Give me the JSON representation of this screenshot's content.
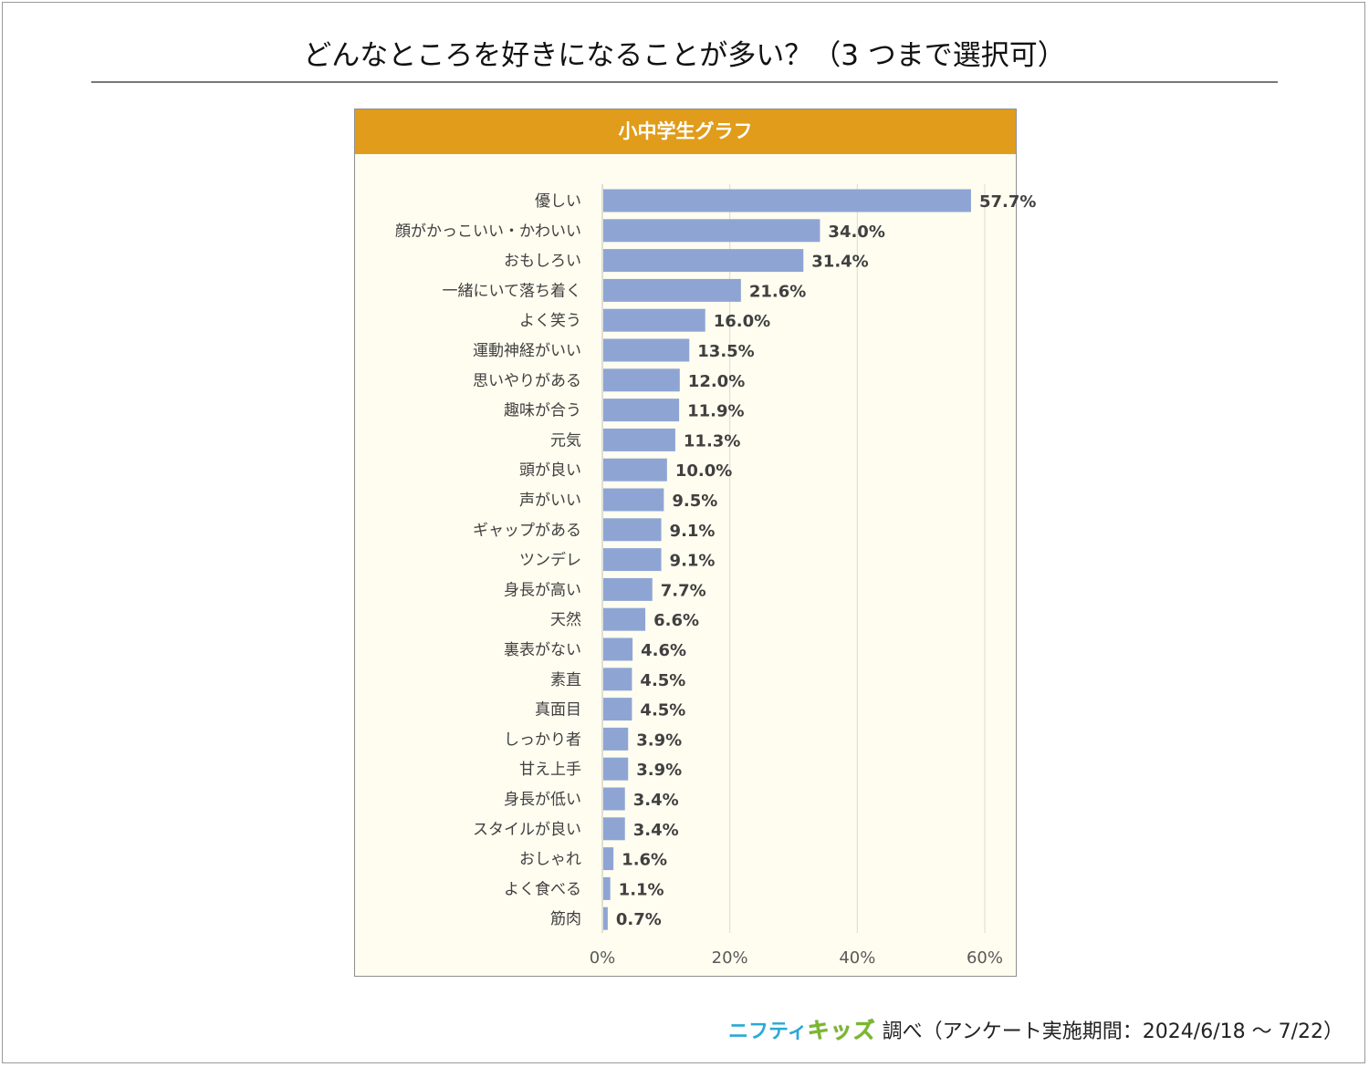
{
  "page": {
    "title": "どんなところを好きになることが多い？（3 つまで選択可）",
    "footer": {
      "brand_part1": "ニフティ",
      "brand_part2": "キッズ",
      "text": "調べ（アンケート実施期間：2024/6/18 ～ 7/22）"
    }
  },
  "colors": {
    "header": "#e09c1a",
    "panel_bg": "#fffdf0",
    "bar": "#8ea5d4"
  },
  "chart_data": {
    "type": "bar",
    "orientation": "horizontal",
    "title": "小中学生グラフ",
    "unit": "%",
    "categories": [
      "優しい",
      "顔がかっこいい・かわいい",
      "おもしろい",
      "一緒にいて落ち着く",
      "よく笑う",
      "運動神経がいい",
      "思いやりがある",
      "趣味が合う",
      "元気",
      "頭が良い",
      "声がいい",
      "ギャップがある",
      "ツンデレ",
      "身長が高い",
      "天然",
      "裏表がない",
      "素直",
      "真面目",
      "しっかり者",
      "甘え上手",
      "身長が低い",
      "スタイルが良い",
      "おしゃれ",
      "よく食べる",
      "筋肉"
    ],
    "values": [
      57.7,
      34.0,
      31.4,
      21.6,
      16.0,
      13.5,
      12.0,
      11.9,
      11.3,
      10.0,
      9.5,
      9.1,
      9.1,
      7.7,
      6.6,
      4.6,
      4.5,
      4.5,
      3.9,
      3.9,
      3.4,
      3.4,
      1.6,
      1.1,
      0.7
    ],
    "data_labels": [
      "57.7%",
      "34.0%",
      "31.4%",
      "21.6%",
      "16.0%",
      "13.5%",
      "12.0%",
      "11.9%",
      "11.3%",
      "10.0%",
      "9.5%",
      "9.1%",
      "9.1%",
      "7.7%",
      "6.6%",
      "4.6%",
      "4.5%",
      "4.5%",
      "3.9%",
      "3.9%",
      "3.4%",
      "3.4%",
      "1.6%",
      "1.1%",
      "0.7%"
    ],
    "xlim": [
      0,
      60
    ],
    "xticks": [
      0,
      20,
      40,
      60
    ],
    "xtick_labels": [
      "0%",
      "20%",
      "40%",
      "60%"
    ],
    "grid": "vertical",
    "legend": "none"
  }
}
